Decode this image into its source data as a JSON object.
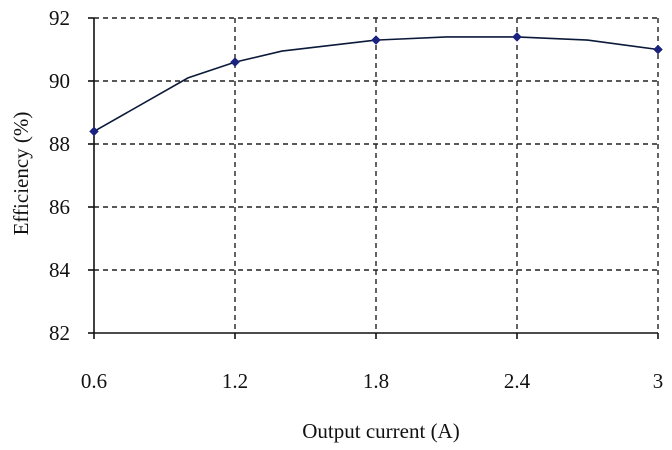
{
  "chart_data": {
    "type": "line",
    "title": "",
    "xlabel": "Output current (A)",
    "ylabel": "Efficiency  (%)",
    "xlim": [
      0.6,
      3.0
    ],
    "ylim": [
      82,
      92
    ],
    "x_ticks": [
      0.6,
      1.2,
      1.8,
      2.4,
      3.0
    ],
    "x_tick_labels": [
      "0.6",
      "1.2",
      "1.8",
      "2.4",
      "3"
    ],
    "y_ticks": [
      82,
      84,
      86,
      88,
      90,
      92
    ],
    "y_tick_labels": [
      "82",
      "84",
      "86",
      "88",
      "90",
      "92"
    ],
    "grid": true,
    "grid_style": "dashed",
    "legend": "none",
    "series": [
      {
        "color": "#0b1a3a",
        "marker_color": "#1a237e",
        "markers_x": [
          0.6,
          1.2,
          1.8,
          2.4,
          3.0
        ],
        "x": [
          0.6,
          1.0,
          1.2,
          1.4,
          1.8,
          2.1,
          2.4,
          2.7,
          3.0
        ],
        "y": [
          88.4,
          90.1,
          90.6,
          90.95,
          91.3,
          91.4,
          91.4,
          91.3,
          91.0
        ]
      }
    ]
  }
}
